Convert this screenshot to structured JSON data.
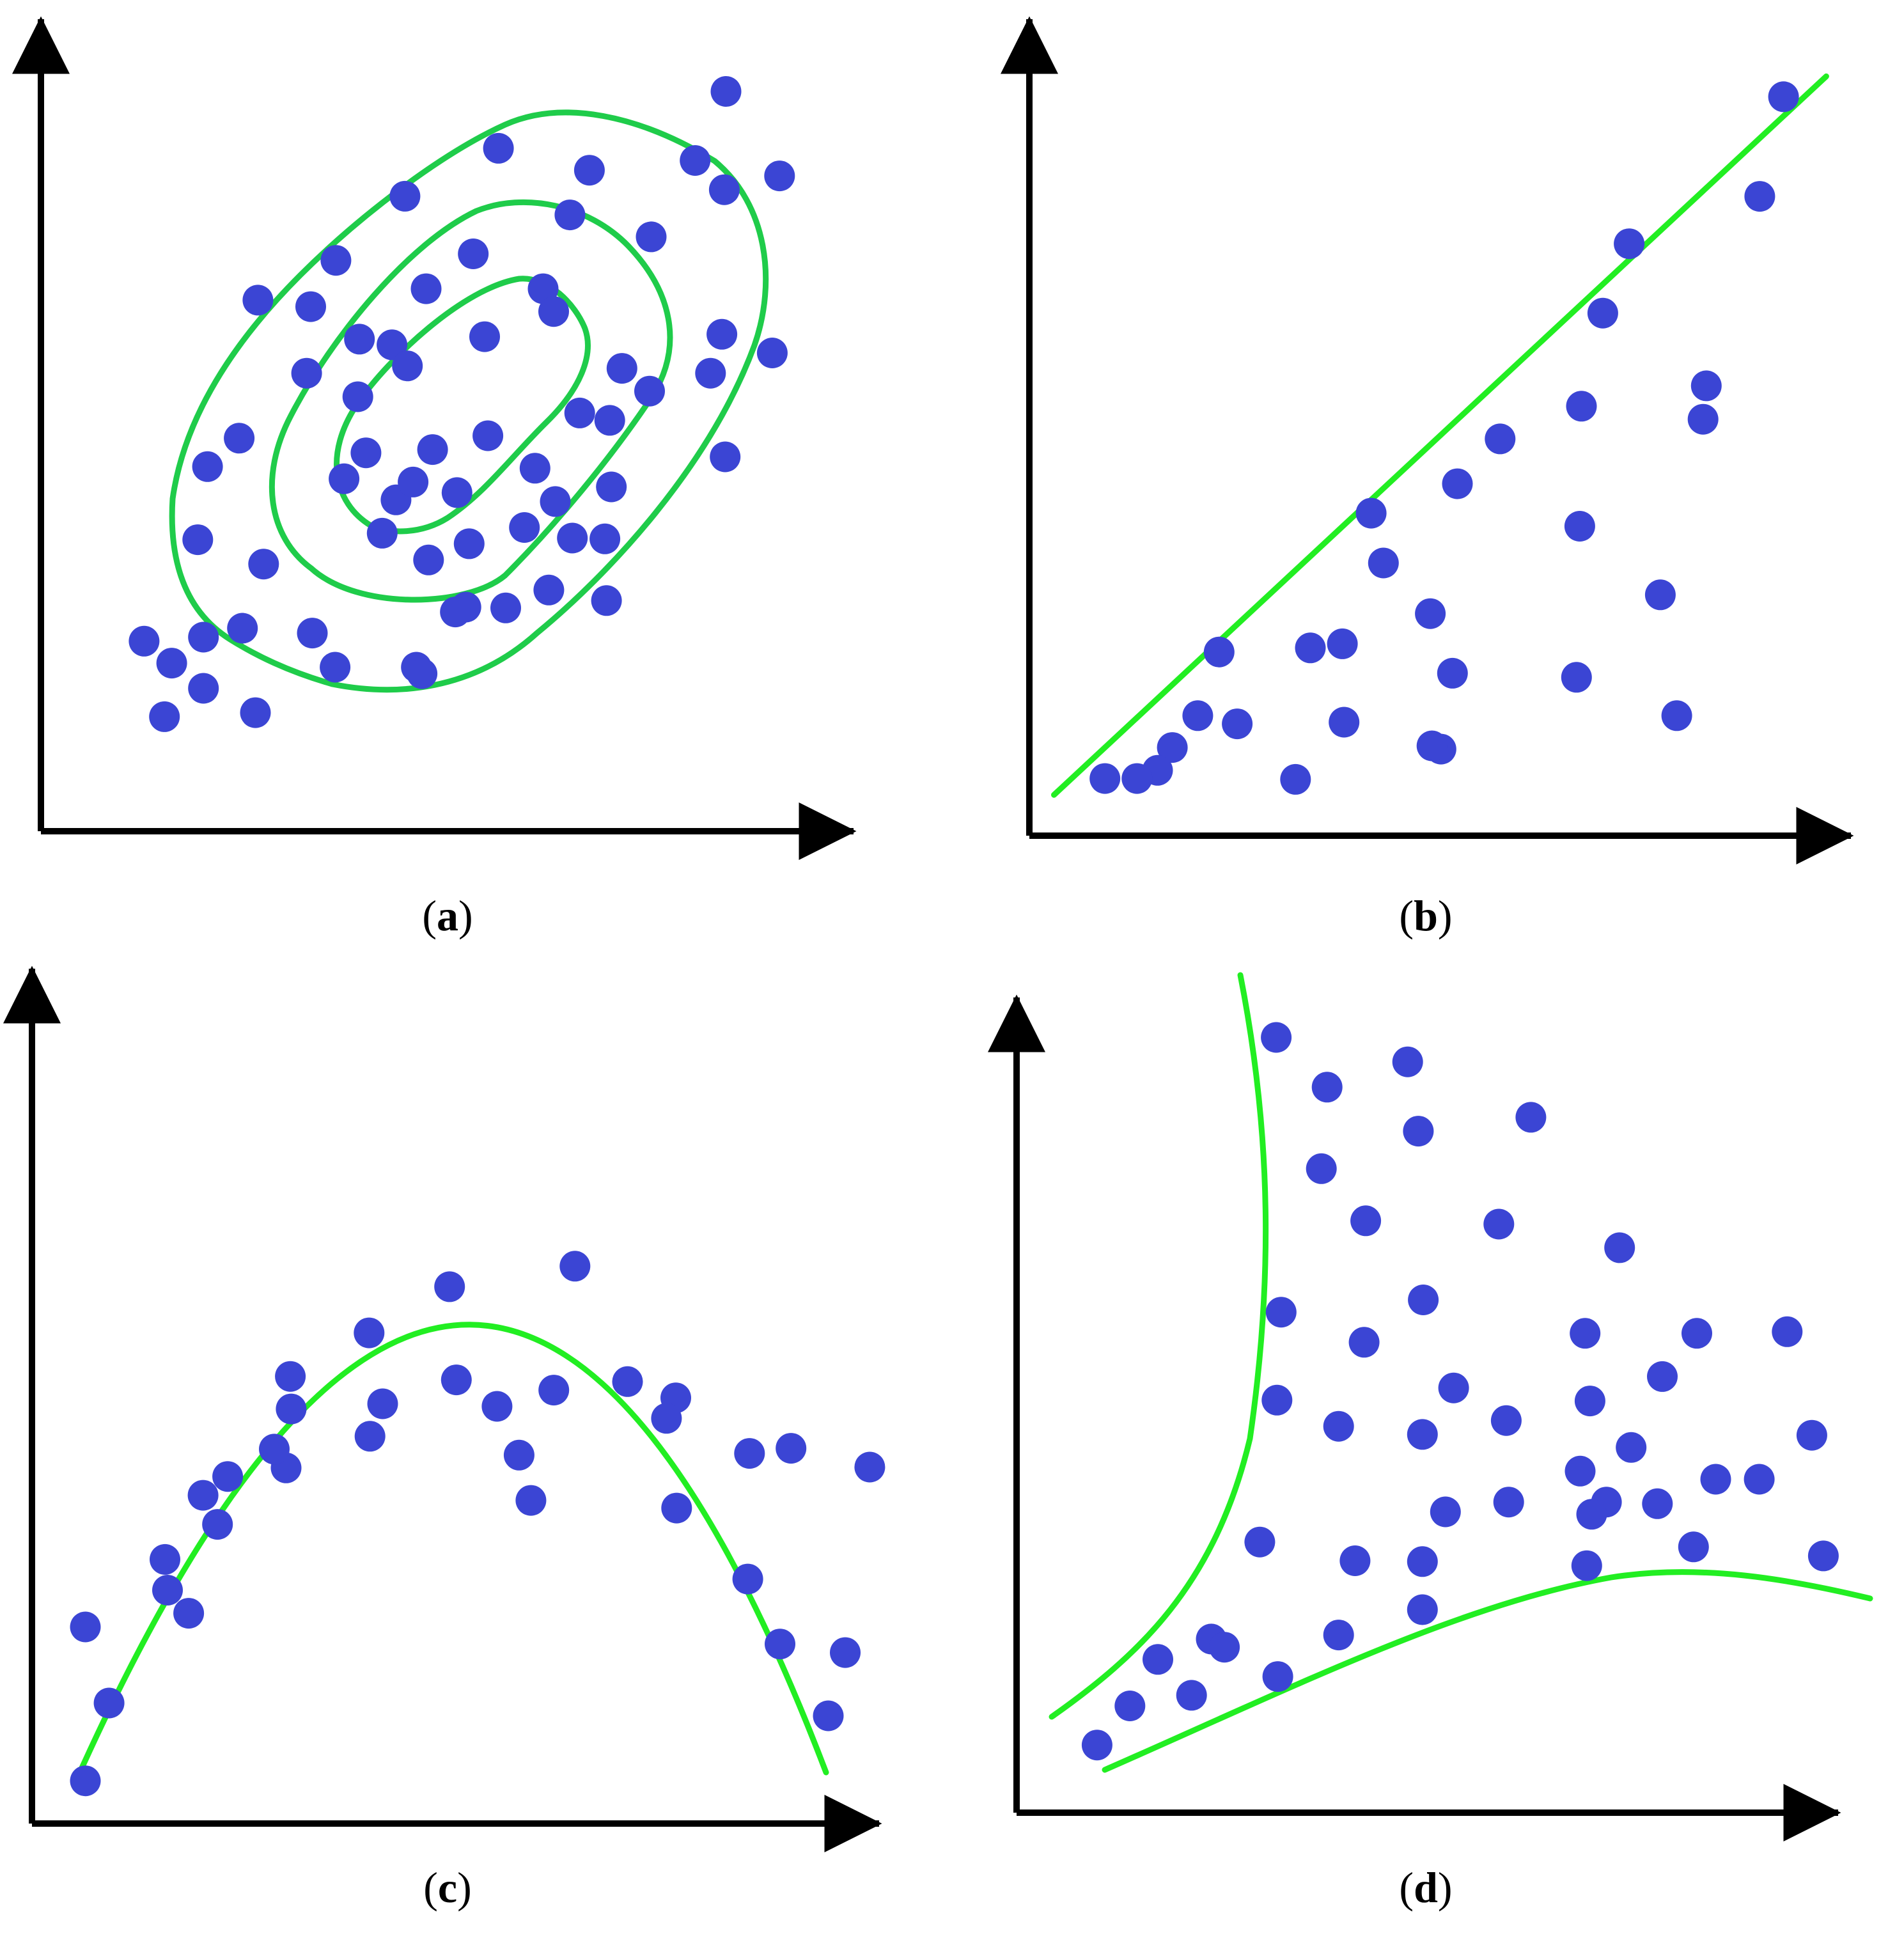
{
  "colors": {
    "background": "#ffffff",
    "axis": "#000000",
    "point": "#3b45d4",
    "curve_a": "#1fcc4a",
    "curve": "#22ee22"
  },
  "chart_data": [
    {
      "panel": "a",
      "type": "scatter",
      "caption": {
        "open": "(",
        "letter": "a",
        "close": ")"
      },
      "title": "",
      "xlabel": "",
      "ylabel": "",
      "xlim": [
        0,
        100
      ],
      "ylim": [
        0,
        100
      ],
      "grid": false,
      "points": [
        [
          84.3,
          91.1
        ],
        [
          67.5,
          81.4
        ],
        [
          80.5,
          82.6
        ],
        [
          56.3,
          84.1
        ],
        [
          65.1,
          75.9
        ],
        [
          44.8,
          78.2
        ],
        [
          90.9,
          80.7
        ],
        [
          84.1,
          79.0
        ],
        [
          61.8,
          66.8
        ],
        [
          36.3,
          70.3
        ],
        [
          53.2,
          71.1
        ],
        [
          75.1,
          73.2
        ],
        [
          47.4,
          66.8
        ],
        [
          63.1,
          64.0
        ],
        [
          26.7,
          65.4
        ],
        [
          33.2,
          64.6
        ],
        [
          39.2,
          60.6
        ],
        [
          43.2,
          59.9
        ],
        [
          54.6,
          60.9
        ],
        [
          45.1,
          57.3
        ],
        [
          71.5,
          57.0
        ],
        [
          83.8,
          61.2
        ],
        [
          90.0,
          58.9
        ],
        [
          70.0,
          50.6
        ],
        [
          32.7,
          56.4
        ],
        [
          39.0,
          53.5
        ],
        [
          82.4,
          56.4
        ],
        [
          24.4,
          48.4
        ],
        [
          74.9,
          54.2
        ],
        [
          66.3,
          51.5
        ],
        [
          48.2,
          47.0
        ],
        [
          55.0,
          48.7
        ],
        [
          40.0,
          46.6
        ],
        [
          51.2,
          41.7
        ],
        [
          60.8,
          44.7
        ],
        [
          20.5,
          44.9
        ],
        [
          63.3,
          40.6
        ],
        [
          37.3,
          43.4
        ],
        [
          84.2,
          46.1
        ],
        [
          43.7,
          40.8
        ],
        [
          45.8,
          43.0
        ],
        [
          70.2,
          42.4
        ],
        [
          19.3,
          35.9
        ],
        [
          52.7,
          35.4
        ],
        [
          59.5,
          37.4
        ],
        [
          69.4,
          36.0
        ],
        [
          42.0,
          36.7
        ],
        [
          65.4,
          36.1
        ],
        [
          47.7,
          33.4
        ],
        [
          27.4,
          32.9
        ],
        [
          62.5,
          29.7
        ],
        [
          52.3,
          27.6
        ],
        [
          51.0,
          27.0
        ],
        [
          24.8,
          25.0
        ],
        [
          57.2,
          27.5
        ],
        [
          33.4,
          24.4
        ],
        [
          20.0,
          23.9
        ],
        [
          20.0,
          17.6
        ],
        [
          12.7,
          23.4
        ],
        [
          46.2,
          20.2
        ],
        [
          36.2,
          20.2
        ],
        [
          46.9,
          19.4
        ],
        [
          69.6,
          28.4
        ],
        [
          16.1,
          20.7
        ],
        [
          26.4,
          14.6
        ],
        [
          15.2,
          14.1
        ]
      ],
      "curves": [
        {
          "shape": "inner-ellipse"
        },
        {
          "shape": "middle-ellipse"
        },
        {
          "shape": "outer-ellipse"
        }
      ]
    },
    {
      "panel": "b",
      "type": "scatter",
      "caption": {
        "open": "(",
        "letter": "b",
        "close": ")"
      },
      "title": "",
      "xlabel": "",
      "ylabel": "",
      "xlim": [
        0,
        100
      ],
      "ylim": [
        0,
        100
      ],
      "grid": false,
      "points": [
        [
          91.8,
          90.5
        ],
        [
          88.9,
          78.3
        ],
        [
          73.0,
          72.5
        ],
        [
          69.8,
          64.0
        ],
        [
          82.4,
          55.1
        ],
        [
          57.3,
          48.6
        ],
        [
          82.0,
          51.0
        ],
        [
          67.2,
          52.6
        ],
        [
          52.1,
          43.1
        ],
        [
          41.6,
          39.5
        ],
        [
          67.0,
          37.9
        ],
        [
          43.1,
          33.4
        ],
        [
          76.8,
          29.5
        ],
        [
          38.1,
          23.5
        ],
        [
          48.8,
          27.2
        ],
        [
          34.2,
          23.0
        ],
        [
          51.5,
          19.9
        ],
        [
          66.6,
          19.4
        ],
        [
          23.1,
          22.5
        ],
        [
          38.3,
          13.9
        ],
        [
          78.8,
          14.7
        ],
        [
          25.3,
          13.7
        ],
        [
          20.5,
          14.7
        ],
        [
          50.1,
          10.6
        ],
        [
          17.4,
          10.8
        ],
        [
          49.0,
          11.0
        ],
        [
          32.4,
          6.9
        ],
        [
          15.6,
          8.0
        ],
        [
          13.1,
          7.0
        ],
        [
          9.2,
          7.0
        ]
      ],
      "curves": [
        {
          "shape": "line",
          "x": [
            3.0,
            97.0
          ],
          "y": [
            5.0,
            93.0
          ]
        }
      ]
    },
    {
      "panel": "c",
      "type": "scatter",
      "caption": {
        "open": "(",
        "letter": "c",
        "close": ")"
      },
      "title": "",
      "xlabel": "",
      "ylabel": "",
      "xlim": [
        0,
        100
      ],
      "ylim": [
        0,
        100
      ],
      "grid": false,
      "points": [
        [
          49.3,
          62.8
        ],
        [
          64.1,
          65.2
        ],
        [
          30.5,
          52.3
        ],
        [
          39.8,
          57.4
        ],
        [
          50.1,
          51.9
        ],
        [
          61.6,
          50.7
        ],
        [
          76.0,
          49.8
        ],
        [
          54.9,
          48.8
        ],
        [
          70.3,
          51.7
        ],
        [
          41.4,
          49.1
        ],
        [
          30.6,
          48.5
        ],
        [
          39.9,
          45.3
        ],
        [
          57.5,
          43.1
        ],
        [
          74.9,
          47.4
        ],
        [
          84.7,
          43.3
        ],
        [
          58.9,
          37.8
        ],
        [
          20.2,
          38.4
        ],
        [
          89.6,
          43.9
        ],
        [
          76.1,
          36.9
        ],
        [
          30.0,
          41.6
        ],
        [
          98.9,
          41.7
        ],
        [
          23.1,
          40.6
        ],
        [
          28.6,
          43.8
        ],
        [
          21.9,
          35.0
        ],
        [
          16.0,
          27.3
        ],
        [
          15.7,
          30.9
        ],
        [
          6.3,
          23.0
        ],
        [
          18.5,
          24.6
        ],
        [
          84.5,
          28.6
        ],
        [
          88.3,
          21.0
        ],
        [
          96.0,
          20.0
        ],
        [
          94.0,
          12.6
        ],
        [
          9.1,
          14.1
        ],
        [
          6.3,
          5.0
        ]
      ],
      "curves": [
        {
          "shape": "parabola"
        }
      ]
    },
    {
      "panel": "d",
      "type": "scatter",
      "caption": {
        "open": "(",
        "letter": "d",
        "close": ")"
      },
      "title": "",
      "xlabel": "",
      "ylabel": "",
      "xlim": [
        0,
        100
      ],
      "ylim": [
        0,
        100
      ],
      "grid": false,
      "points": [
        [
          31.6,
          95.1
        ],
        [
          47.6,
          92.1
        ],
        [
          37.8,
          89.0
        ],
        [
          48.9,
          83.6
        ],
        [
          62.6,
          85.3
        ],
        [
          37.1,
          79.0
        ],
        [
          42.5,
          72.6
        ],
        [
          58.7,
          72.2
        ],
        [
          73.4,
          69.3
        ],
        [
          32.2,
          61.4
        ],
        [
          49.5,
          62.9
        ],
        [
          42.3,
          57.7
        ],
        [
          69.2,
          58.8
        ],
        [
          82.8,
          58.8
        ],
        [
          93.8,
          59.0
        ],
        [
          53.2,
          52.1
        ],
        [
          31.7,
          50.6
        ],
        [
          39.2,
          47.4
        ],
        [
          49.4,
          46.4
        ],
        [
          59.6,
          48.1
        ],
        [
          69.8,
          50.5
        ],
        [
          78.6,
          53.5
        ],
        [
          74.8,
          44.8
        ],
        [
          96.8,
          46.3
        ],
        [
          85.1,
          40.9
        ],
        [
          68.6,
          41.9
        ],
        [
          59.9,
          38.1
        ],
        [
          71.8,
          38.1
        ],
        [
          78.0,
          37.9
        ],
        [
          70.0,
          36.6
        ],
        [
          90.4,
          40.9
        ],
        [
          29.6,
          33.2
        ],
        [
          41.2,
          30.9
        ],
        [
          52.2,
          36.9
        ],
        [
          49.4,
          30.8
        ],
        [
          69.4,
          30.3
        ],
        [
          82.4,
          32.6
        ],
        [
          98.2,
          31.5
        ],
        [
          23.7,
          21.3
        ],
        [
          17.2,
          18.8
        ],
        [
          25.3,
          20.3
        ],
        [
          39.2,
          21.8
        ],
        [
          49.4,
          24.9
        ],
        [
          31.8,
          16.7
        ],
        [
          13.8,
          13.1
        ],
        [
          21.3,
          14.4
        ],
        [
          9.8,
          8.3
        ]
      ],
      "curves": [
        {
          "shape": "hyperbola-left"
        },
        {
          "shape": "hyperbola-bottom"
        }
      ]
    }
  ]
}
